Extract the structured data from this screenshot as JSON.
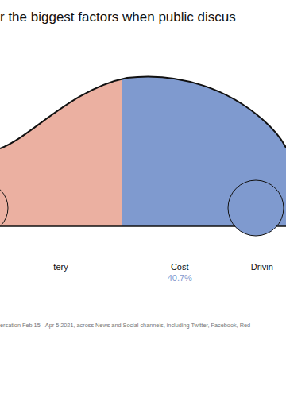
{
  "chart_data": {
    "type": "bar",
    "title": "r the biggest factors when public discus",
    "orientation": "horizontal",
    "stacked": true,
    "categories": [
      null
    ],
    "series": [
      {
        "name": "tery",
        "color": "#ebb0a1",
        "values": [
          42.5
        ]
      },
      {
        "name": "Cost",
        "color": "#7f9acf",
        "values": [
          40.7
        ],
        "value_labels": [
          "40.7%"
        ]
      },
      {
        "name": "Drivin",
        "color": "#7f9acf",
        "values": [
          16.8
        ]
      }
    ],
    "xlim": [
      0,
      100
    ],
    "xticks": [
      0,
      100
    ],
    "tick_labels": false,
    "footnote": "ersation Feb 15 - Apr 5 2021, across News and Social channels, including Twitter, Facebook, Red"
  }
}
